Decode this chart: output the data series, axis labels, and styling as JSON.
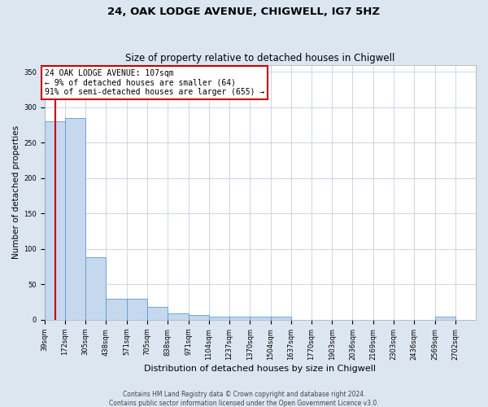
{
  "title1": "24, OAK LODGE AVENUE, CHIGWELL, IG7 5HZ",
  "title2": "Size of property relative to detached houses in Chigwell",
  "xlabel": "Distribution of detached houses by size in Chigwell",
  "ylabel": "Number of detached properties",
  "footer1": "Contains HM Land Registry data © Crown copyright and database right 2024.",
  "footer2": "Contains public sector information licensed under the Open Government Licence v3.0.",
  "annotation_line1": "24 OAK LODGE AVENUE: 107sqm",
  "annotation_line2": "← 9% of detached houses are smaller (64)",
  "annotation_line3": "91% of semi-detached houses are larger (655) →",
  "property_size": 107,
  "bar_labels": [
    "39sqm",
    "172sqm",
    "305sqm",
    "438sqm",
    "571sqm",
    "705sqm",
    "838sqm",
    "971sqm",
    "1104sqm",
    "1237sqm",
    "1370sqm",
    "1504sqm",
    "1637sqm",
    "1770sqm",
    "1903sqm",
    "2036sqm",
    "2169sqm",
    "2303sqm",
    "2436sqm",
    "2569sqm",
    "2702sqm"
  ],
  "bar_values": [
    280,
    285,
    88,
    30,
    30,
    18,
    9,
    7,
    5,
    4,
    5,
    4,
    0,
    0,
    0,
    0,
    0,
    0,
    0,
    4,
    0
  ],
  "bin_edges_sqm": [
    39,
    172,
    305,
    438,
    571,
    705,
    838,
    971,
    1104,
    1237,
    1370,
    1504,
    1637,
    1770,
    1903,
    2036,
    2169,
    2303,
    2436,
    2569,
    2702,
    2835
  ],
  "bar_color": "#c5d8ed",
  "bar_edge_color": "#5b9bd5",
  "vline_color": "#cc0000",
  "vline_x": 107,
  "annotation_box_edge_color": "#cc0000",
  "annotation_box_face_color": "#ffffff",
  "grid_color": "#c5cfe0",
  "bg_color": "#dce6f1",
  "plot_bg_color": "#ffffff",
  "ylim": [
    0,
    360
  ],
  "yticks": [
    0,
    50,
    100,
    150,
    200,
    250,
    300,
    350
  ],
  "title1_fontsize": 9.5,
  "title2_fontsize": 8.5,
  "xlabel_fontsize": 8,
  "ylabel_fontsize": 7.5,
  "tick_fontsize": 6,
  "annotation_fontsize": 7,
  "footer_fontsize": 5.5
}
